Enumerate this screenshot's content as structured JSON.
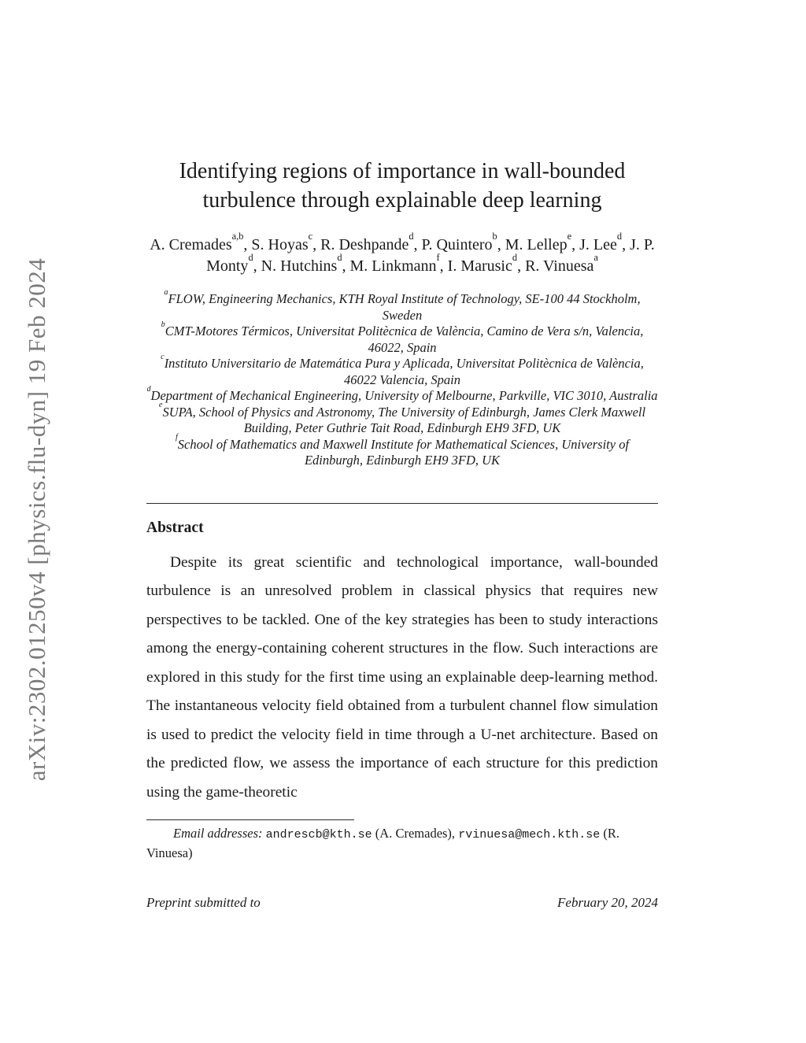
{
  "watermark": {
    "text": "arXiv:2302.01250v4 [physics.flu-dyn] 19 Feb 2024",
    "color": "#7b7b7b"
  },
  "title": {
    "line1": "Identifying regions of importance in wall-bounded",
    "line2": "turbulence through explainable deep learning"
  },
  "authors": [
    {
      "name": "A. Cremades",
      "sup": "a,b"
    },
    {
      "name": "S. Hoyas",
      "sup": "c"
    },
    {
      "name": "R. Deshpande",
      "sup": "d"
    },
    {
      "name": "P. Quintero",
      "sup": "b"
    },
    {
      "name": "M. Lellep",
      "sup": "e"
    },
    {
      "name": "J. Lee",
      "sup": "d"
    },
    {
      "name": "J. P. Monty",
      "sup": "d"
    },
    {
      "name": "N. Hutchins",
      "sup": "d"
    },
    {
      "name": "M. Linkmann",
      "sup": "f"
    },
    {
      "name": "I. Marusic",
      "sup": "d"
    },
    {
      "name": "R. Vinuesa",
      "sup": "a"
    }
  ],
  "affiliations": [
    {
      "sup": "a",
      "text": "FLOW, Engineering Mechanics, KTH Royal Institute of Technology, SE-100 44 Stockholm, Sweden"
    },
    {
      "sup": "b",
      "text": "CMT-Motores Térmicos, Universitat Politècnica de València, Camino de Vera s/n, Valencia, 46022, Spain"
    },
    {
      "sup": "c",
      "text": "Instituto Universitario de Matemática Pura y Aplicada, Universitat Politècnica de València, 46022 Valencia, Spain"
    },
    {
      "sup": "d",
      "text": "Department of Mechanical Engineering, University of Melbourne, Parkville, VIC 3010, Australia"
    },
    {
      "sup": "e",
      "text": "SUPA, School of Physics and Astronomy, The University of Edinburgh, James Clerk Maxwell Building, Peter Guthrie Tait Road, Edinburgh EH9 3FD, UK"
    },
    {
      "sup": "f",
      "text": "School of Mathematics and Maxwell Institute for Mathematical Sciences, University of Edinburgh, Edinburgh EH9 3FD, UK"
    }
  ],
  "abstract": {
    "heading": "Abstract",
    "paragraph": "Despite its great scientific and technological importance, wall-bounded turbulence is an unresolved problem in classical physics that requires new perspectives to be tackled. One of the key strategies has been to study interactions among the energy-containing coherent structures in the flow. Such interactions are explored in this study for the first time using an explainable deep-learning method. The instantaneous velocity field obtained from a turbulent channel flow simulation is used to predict the velocity field in time through a U-net architecture. Based on the predicted flow, we assess the importance of each structure for this prediction using the game-theoretic"
  },
  "footnote": {
    "segments": [
      {
        "style": "italic",
        "text": "Email addresses: "
      },
      {
        "style": "mono",
        "text": "andrescb@kth.se"
      },
      {
        "style": "roman",
        "text": " (A. Cremades), "
      },
      {
        "style": "mono",
        "text": "rvinuesa@mech.kth.se"
      },
      {
        "style": "roman",
        "text": " (R. Vinuesa)"
      }
    ]
  },
  "footer": {
    "left": "Preprint submitted to",
    "right": "February 20, 2024"
  }
}
